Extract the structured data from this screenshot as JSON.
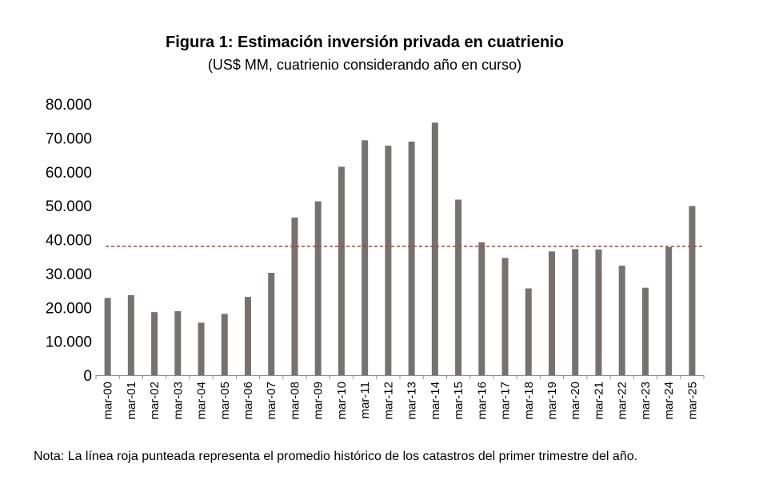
{
  "chart_data": {
    "type": "bar",
    "title": "Figura 1:  Estimación inversión privada en cuatrienio",
    "subtitle": "(US$ MM, cuatrienio considerando año en curso)",
    "xlabel": "",
    "ylabel": "",
    "ylim": [
      0,
      80000
    ],
    "yticks": [
      0,
      10000,
      20000,
      30000,
      40000,
      50000,
      60000,
      70000,
      80000
    ],
    "ytick_labels": [
      "0",
      "10.000",
      "20.000",
      "30.000",
      "40.000",
      "50.000",
      "60.000",
      "70.000",
      "80.000"
    ],
    "categories": [
      "mar-00",
      "mar-01",
      "mar-02",
      "mar-03",
      "mar-04",
      "mar-05",
      "mar-06",
      "mar-07",
      "mar-08",
      "mar-09",
      "mar-10",
      "mar-11",
      "mar-12",
      "mar-13",
      "mar-14",
      "mar-15",
      "mar-16",
      "mar-17",
      "mar-18",
      "mar-19",
      "mar-20",
      "mar-21",
      "mar-22",
      "mar-23",
      "mar-24",
      "mar-25"
    ],
    "values": [
      22800,
      23600,
      18600,
      18900,
      15500,
      18100,
      23100,
      30200,
      46500,
      51300,
      61500,
      69300,
      67700,
      68900,
      74500,
      51800,
      39200,
      34600,
      25600,
      36500,
      37200,
      37100,
      32300,
      25800,
      37800,
      49900
    ],
    "reference_line": {
      "value": 38000,
      "style": "dashed"
    },
    "grid": false,
    "legend": "none",
    "colors": {
      "bar": "#777170",
      "reference_line": "#c0392b",
      "axis": "#8c8c8c"
    }
  },
  "note": "Nota: La línea roja punteada representa el promedio histórico de los catastros del primer trimestre del año."
}
